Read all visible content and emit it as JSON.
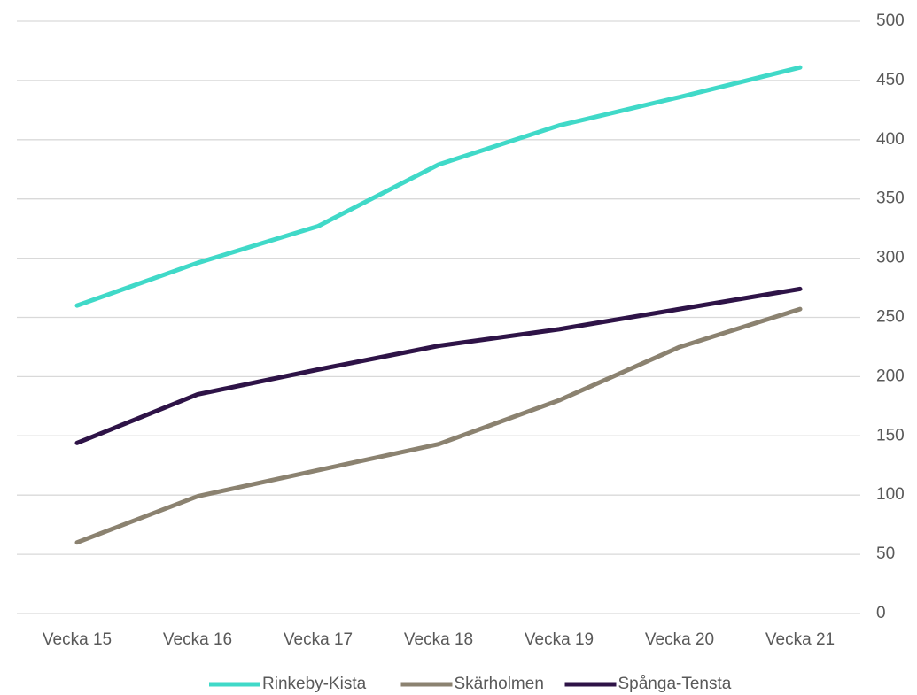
{
  "chart_data": {
    "type": "line",
    "categories": [
      "Vecka 15",
      "Vecka 16",
      "Vecka 17",
      "Vecka 18",
      "Vecka 19",
      "Vecka 20",
      "Vecka 21"
    ],
    "series": [
      {
        "name": "Rinkeby-Kista",
        "color": "#40d9c8",
        "values": [
          260,
          296,
          327,
          379,
          412,
          436,
          461
        ]
      },
      {
        "name": "Skärholmen",
        "color": "#8b8270",
        "values": [
          60,
          99,
          121,
          143,
          180,
          225,
          257
        ]
      },
      {
        "name": "Spånga-Tensta",
        "color": "#2e1347",
        "values": [
          144,
          185,
          206,
          226,
          240,
          257,
          274
        ]
      }
    ],
    "ylim": [
      0,
      500
    ],
    "yticks": [
      0,
      50,
      100,
      150,
      200,
      250,
      300,
      350,
      400,
      450,
      500
    ],
    "grid": true,
    "y_axis_side": "right",
    "legend": "bottom"
  }
}
